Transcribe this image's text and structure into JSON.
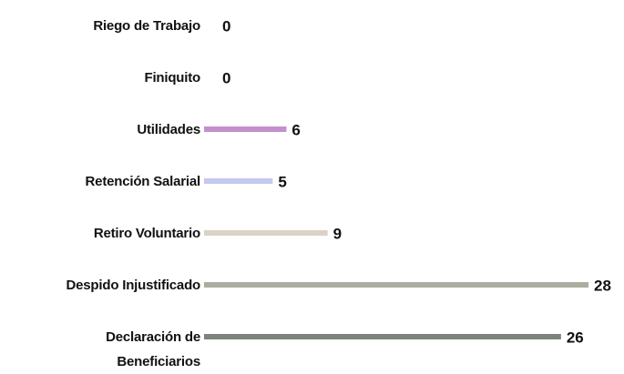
{
  "chart_data": {
    "type": "bar",
    "orientation": "horizontal",
    "categories": [
      "Riego de Trabajo",
      "Finiquito",
      "Utilidades",
      "Retención Salarial",
      "Retiro Voluntario",
      "Despido Injustificado",
      "Declaración de\nBeneficiarios"
    ],
    "values": [
      0,
      0,
      6,
      5,
      9,
      28,
      26
    ],
    "colors": [
      "#c38fcc",
      "#c38fcc",
      "#c38fcc",
      "#c5c8ef",
      "#dad3c5",
      "#aaae9f",
      "#7c837a"
    ]
  }
}
